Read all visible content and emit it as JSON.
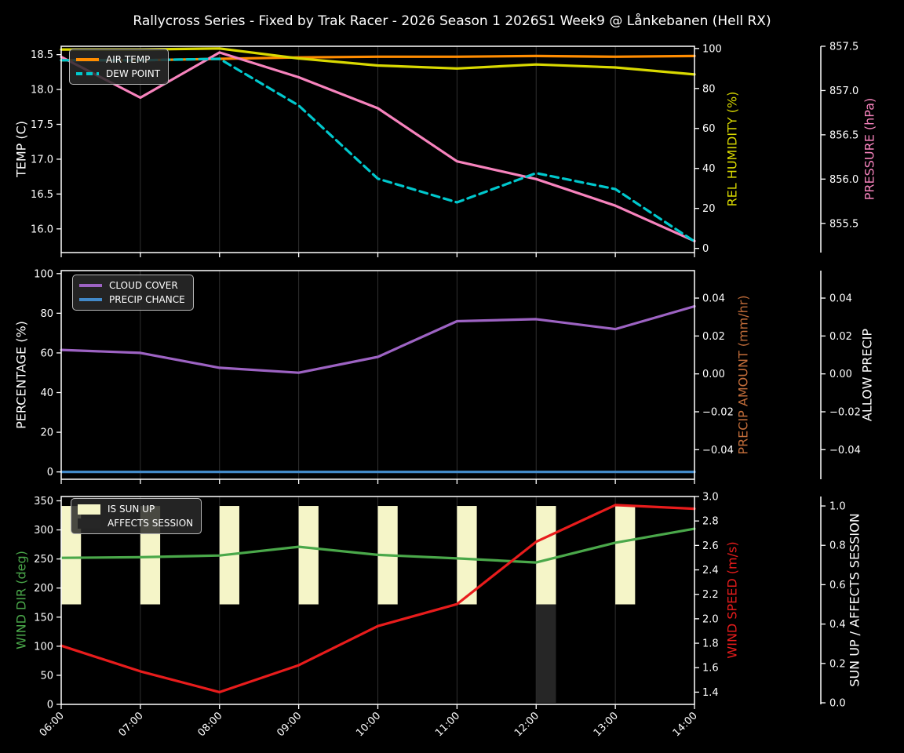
{
  "title": "Rallycross Series - Fixed by Trak Racer - 2026 Season 1 2026S1 Week9 @ Lånkebanen (Hell RX)",
  "style": {
    "background": "#000000",
    "foreground": "#ffffff",
    "grid": "#303030"
  },
  "x_labels": [
    "06:00",
    "07:00",
    "08:00",
    "09:00",
    "10:00",
    "11:00",
    "12:00",
    "13:00",
    "14:00"
  ],
  "chart_data": [
    {
      "type": "line",
      "name": "temperature-humidity-pressure",
      "categories": [
        "06:00",
        "07:00",
        "08:00",
        "09:00",
        "10:00",
        "11:00",
        "12:00",
        "13:00",
        "14:00"
      ],
      "legend": [
        {
          "label": "AIR TEMP",
          "color": "#ff8c00",
          "style": "solid-line"
        },
        {
          "label": "DEW POINT",
          "color": "#00c8cd",
          "style": "dashed-line"
        }
      ],
      "axes": {
        "left": {
          "label": "TEMP (C)",
          "color": "#ffffff",
          "range": [
            15.66,
            18.62
          ],
          "tick_values": [
            16.0,
            16.5,
            17.0,
            17.5,
            18.0,
            18.5
          ],
          "tick_labels": [
            "16.0",
            "16.5",
            "17.0",
            "17.5",
            "18.0",
            "18.5"
          ]
        },
        "right1": {
          "label": "REL HUMIDITY (%)",
          "color": "#d9d900",
          "range": [
            -2.1,
            101.1
          ],
          "tick_values": [
            0,
            20,
            40,
            60,
            80,
            100
          ],
          "tick_labels": [
            "0",
            "20",
            "40",
            "60",
            "80",
            "100"
          ]
        },
        "right2": {
          "label": "PRESSURE (hPa)",
          "color": "#f783bd",
          "range": [
            855.17,
            857.5
          ],
          "tick_values": [
            855.5,
            856.0,
            856.5,
            857.0,
            857.5
          ],
          "tick_labels": [
            "855.5",
            "856.0",
            "856.5",
            "857.0",
            "857.5"
          ]
        }
      },
      "series": [
        {
          "name": "air-temp",
          "axis": "left",
          "color": "#ff8c00",
          "dash": null,
          "values": [
            18.42,
            18.42,
            18.44,
            18.46,
            18.47,
            18.47,
            18.48,
            18.47,
            18.48
          ]
        },
        {
          "name": "rel-humidity",
          "axis": "right1",
          "color": "#d9d900",
          "dash": null,
          "values": [
            99.5,
            99.5,
            100,
            95,
            91.5,
            90,
            92,
            90.5,
            87
          ]
        },
        {
          "name": "pressure",
          "axis": "right2",
          "color": "#f783bd",
          "dash": null,
          "values": [
            857.38,
            856.92,
            857.43,
            857.15,
            856.8,
            856.2,
            856.0,
            855.7,
            855.3
          ]
        },
        {
          "name": "dew-point",
          "axis": "left",
          "color": "#00c8cd",
          "dash": [
            10,
            6
          ],
          "values": [
            18.42,
            18.42,
            18.44,
            17.77,
            16.72,
            16.38,
            16.8,
            16.57,
            15.82
          ]
        }
      ]
    },
    {
      "type": "line",
      "name": "cloud-precip",
      "categories": [
        "06:00",
        "07:00",
        "08:00",
        "09:00",
        "10:00",
        "11:00",
        "12:00",
        "13:00",
        "14:00"
      ],
      "legend": [
        {
          "label": "CLOUD COVER",
          "color": "#9d63c3",
          "style": "solid-line"
        },
        {
          "label": "PRECIP CHANCE",
          "color": "#4289c8",
          "style": "solid-line"
        }
      ],
      "axes": {
        "left": {
          "label": "PERCENTAGE (%)",
          "color": "#ffffff",
          "range": [
            -3.7,
            101.5
          ],
          "tick_values": [
            0,
            20,
            40,
            60,
            80,
            100
          ],
          "tick_labels": [
            "0",
            "20",
            "40",
            "60",
            "80",
            "100"
          ]
        },
        "right1": {
          "label": "PRECIP AMOUNT (mm/hr)",
          "color": "#c26d3a",
          "range": [
            -0.0556,
            0.0545
          ],
          "tick_values": [
            -0.04,
            -0.02,
            0.0,
            0.02,
            0.04
          ],
          "tick_labels": [
            "−0.04",
            "−0.02",
            "0.00",
            "0.02",
            "0.04"
          ]
        },
        "right2": {
          "label": "ALLOW PRECIP",
          "color": "#ffffff",
          "range": [
            -0.0556,
            0.0545
          ],
          "tick_values": [
            -0.04,
            -0.02,
            0.0,
            0.02,
            0.04
          ],
          "tick_labels": [
            "−0.04",
            "−0.02",
            "0.00",
            "0.02",
            "0.04"
          ]
        }
      },
      "series": [
        {
          "name": "cloud-cover",
          "axis": "left",
          "color": "#9d63c3",
          "dash": null,
          "values": [
            61.5,
            60,
            52.5,
            50,
            58,
            76,
            77,
            72,
            83.5
          ]
        },
        {
          "name": "precip-chance",
          "axis": "left",
          "color": "#4289c8",
          "dash": null,
          "values": [
            0,
            0,
            0,
            0,
            0,
            0,
            0,
            0,
            0
          ]
        }
      ]
    },
    {
      "type": "line-bar",
      "name": "wind-sun",
      "categories": [
        "06:00",
        "07:00",
        "08:00",
        "09:00",
        "10:00",
        "11:00",
        "12:00",
        "13:00",
        "14:00"
      ],
      "legend": [
        {
          "label": "IS SUN UP",
          "color": "#f5f5c8",
          "style": "patch"
        },
        {
          "label": "AFFECTS SESSION",
          "color": "#262626",
          "style": "patch"
        }
      ],
      "axes": {
        "left": {
          "label": "WIND DIR (deg)",
          "color": "#4aa84a",
          "range": [
            0,
            357.4
          ],
          "tick_values": [
            0,
            50,
            100,
            150,
            200,
            250,
            300,
            350
          ],
          "tick_labels": [
            "0",
            "50",
            "100",
            "150",
            "200",
            "250",
            "300",
            "350"
          ]
        },
        "right1": {
          "label": "WIND SPEED (m/s)",
          "color": "#e81c1c",
          "range": [
            1.3,
            3.0
          ],
          "tick_values": [
            1.4,
            1.6,
            1.8,
            2.0,
            2.2,
            2.4,
            2.6,
            2.8,
            3.0
          ],
          "tick_labels": [
            "1.4",
            "1.6",
            "1.8",
            "2.0",
            "2.2",
            "2.4",
            "2.6",
            "2.8",
            "3.0"
          ]
        },
        "right2": {
          "label": "SUN UP / AFFECTS SESSION",
          "color": "#ffffff",
          "range": [
            -0.008,
            1.048
          ],
          "tick_values": [
            0.0,
            0.2,
            0.4,
            0.6,
            0.8,
            1.0
          ],
          "tick_labels": [
            "0.0",
            "0.2",
            "0.4",
            "0.6",
            "0.8",
            "1.0"
          ]
        }
      },
      "bars": [
        {
          "name": "is-sun-up",
          "color": "#f5f5c8",
          "axis": "right2",
          "v0": 0.5,
          "v1": 1.0,
          "bar_width_hours": 0.25,
          "present": [
            1,
            1,
            1,
            1,
            1,
            1,
            1,
            1,
            0
          ]
        },
        {
          "name": "affects-session",
          "color": "#262626",
          "axis": "right2",
          "v0": 0.0,
          "v1": 0.5,
          "bar_width_hours": 0.25,
          "present": [
            0,
            0,
            0,
            0,
            0,
            0,
            1,
            0,
            0
          ]
        }
      ],
      "series": [
        {
          "name": "wind-dir",
          "axis": "left",
          "color": "#4aa84a",
          "dash": null,
          "values": [
            252,
            253,
            256,
            271,
            257,
            251,
            244,
            278,
            302
          ]
        },
        {
          "name": "wind-speed",
          "axis": "right1",
          "color": "#e81c1c",
          "dash": null,
          "values": [
            1.78,
            1.57,
            1.4,
            1.62,
            1.94,
            2.12,
            2.63,
            2.93,
            2.9
          ]
        }
      ]
    }
  ]
}
